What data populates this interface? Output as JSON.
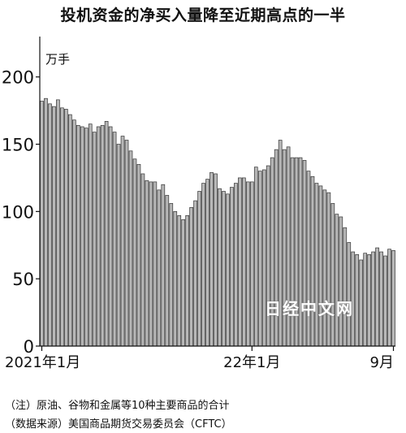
{
  "chart_data": {
    "type": "bar",
    "title": "投机资金的净买入量降至近期高点的一半",
    "unit_label": "万手",
    "ylim": [
      0,
      230
    ],
    "yticks": [
      0,
      50,
      100,
      150,
      200
    ],
    "x_tick_labels": [
      {
        "label": "2021年1月",
        "index": 0
      },
      {
        "label": "22年1月",
        "index": 52
      },
      {
        "label": "9月",
        "index": 87
      }
    ],
    "period": "weekly, 2021-01 to 2022-09",
    "values": [
      182,
      184,
      180,
      178,
      183,
      177,
      176,
      172,
      168,
      164,
      163,
      162,
      165,
      159,
      163,
      164,
      167,
      163,
      159,
      150,
      156,
      153,
      145,
      139,
      135,
      128,
      123,
      122,
      122,
      116,
      120,
      112,
      106,
      100,
      97,
      94,
      97,
      103,
      108,
      115,
      121,
      124,
      129,
      128,
      117,
      115,
      113,
      118,
      121,
      125,
      125,
      122,
      122,
      133,
      130,
      131,
      134,
      140,
      146,
      153,
      146,
      148,
      140,
      140,
      140,
      138,
      130,
      126,
      121,
      119,
      116,
      114,
      106,
      98,
      96,
      88,
      77,
      70,
      68,
      64,
      69,
      68,
      70,
      73,
      70,
      67,
      72,
      71
    ]
  },
  "watermark": "日经中文网",
  "footnote": "（注）原油、谷物和金属等10种主要商品的合计",
  "source": "（数据来源）美国商品期货交易委员会（CFTC）"
}
